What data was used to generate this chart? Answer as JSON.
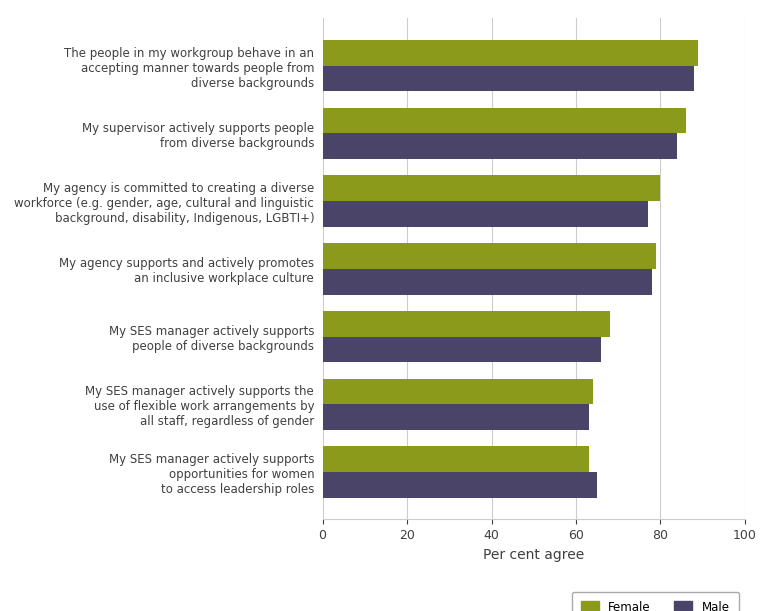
{
  "categories": [
    "The people in my workgroup behave in an\naccepting manner towards people from\ndiverse backgrounds",
    "My supervisor actively supports people\nfrom diverse backgrounds",
    "My agency is committed to creating a diverse\nworkforce (e.g. gender, age, cultural and linguistic\nbackground, disability, Indigenous, LGBTI+)",
    "My agency supports and actively promotes\nan inclusive workplace culture",
    "My SES manager actively supports\npeople of diverse backgrounds",
    "My SES manager actively supports the\nuse of flexible work arrangements by\nall staff, regardless of gender",
    "My SES manager actively supports\nopportunities for women\nto access leadership roles"
  ],
  "female_values": [
    89,
    86,
    80,
    79,
    68,
    64,
    63
  ],
  "male_values": [
    88,
    84,
    77,
    78,
    66,
    63,
    65
  ],
  "female_color": "#8b9a1a",
  "male_color": "#4a4469",
  "xlabel": "Per cent agree",
  "xlim": [
    0,
    100
  ],
  "xticks": [
    0,
    20,
    40,
    60,
    80,
    100
  ],
  "bar_height": 0.38,
  "legend_labels": [
    "Female",
    "Male"
  ],
  "background_color": "#ffffff",
  "grid_color": "#cccccc",
  "text_color": "#404040",
  "xlabel_fontsize": 10,
  "label_fontsize": 8.5,
  "tick_fontsize": 9
}
